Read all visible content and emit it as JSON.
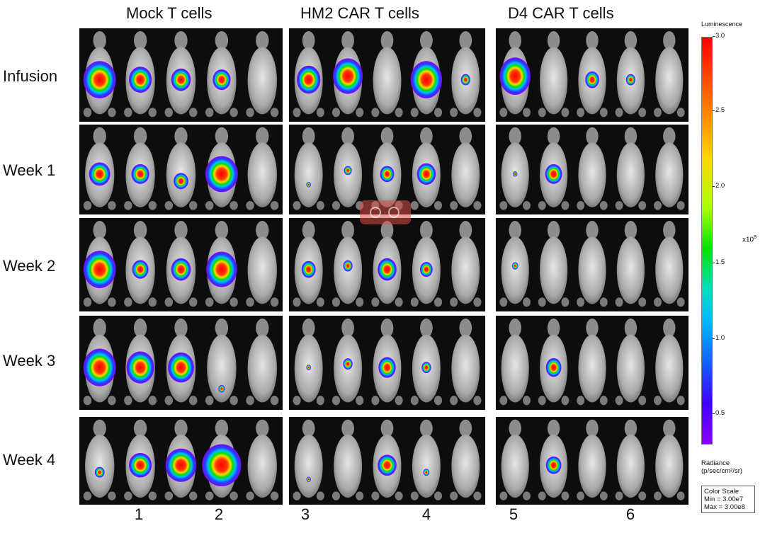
{
  "groups": [
    "Mock T cells",
    "HM2 CAR T cells",
    "D4 CAR T cells"
  ],
  "rows": [
    "Infusion",
    "Week 1",
    "Week 2",
    "Week 3",
    "Week 4"
  ],
  "bottom_numbers": [
    "1",
    "2",
    "3",
    "4",
    "5",
    "6"
  ],
  "colorbar": {
    "title": "Luminescence",
    "ticks": [
      "3.0",
      "2.5",
      "2.0",
      "1.5",
      "1.0",
      "0.5"
    ],
    "exponent": "x10",
    "exponent_power": "8",
    "radiance_label": "Radiance",
    "radiance_units": "(p/sec/cm²/sr)",
    "color_scale_title": "Color Scale",
    "color_scale_min": "Min = 3.00e7",
    "color_scale_max": "Max = 3.00e8",
    "colors": [
      "#ff0000",
      "#ffd800",
      "#00e400",
      "#00b8ff",
      "#4000ff",
      "#8a00ff"
    ]
  }
}
